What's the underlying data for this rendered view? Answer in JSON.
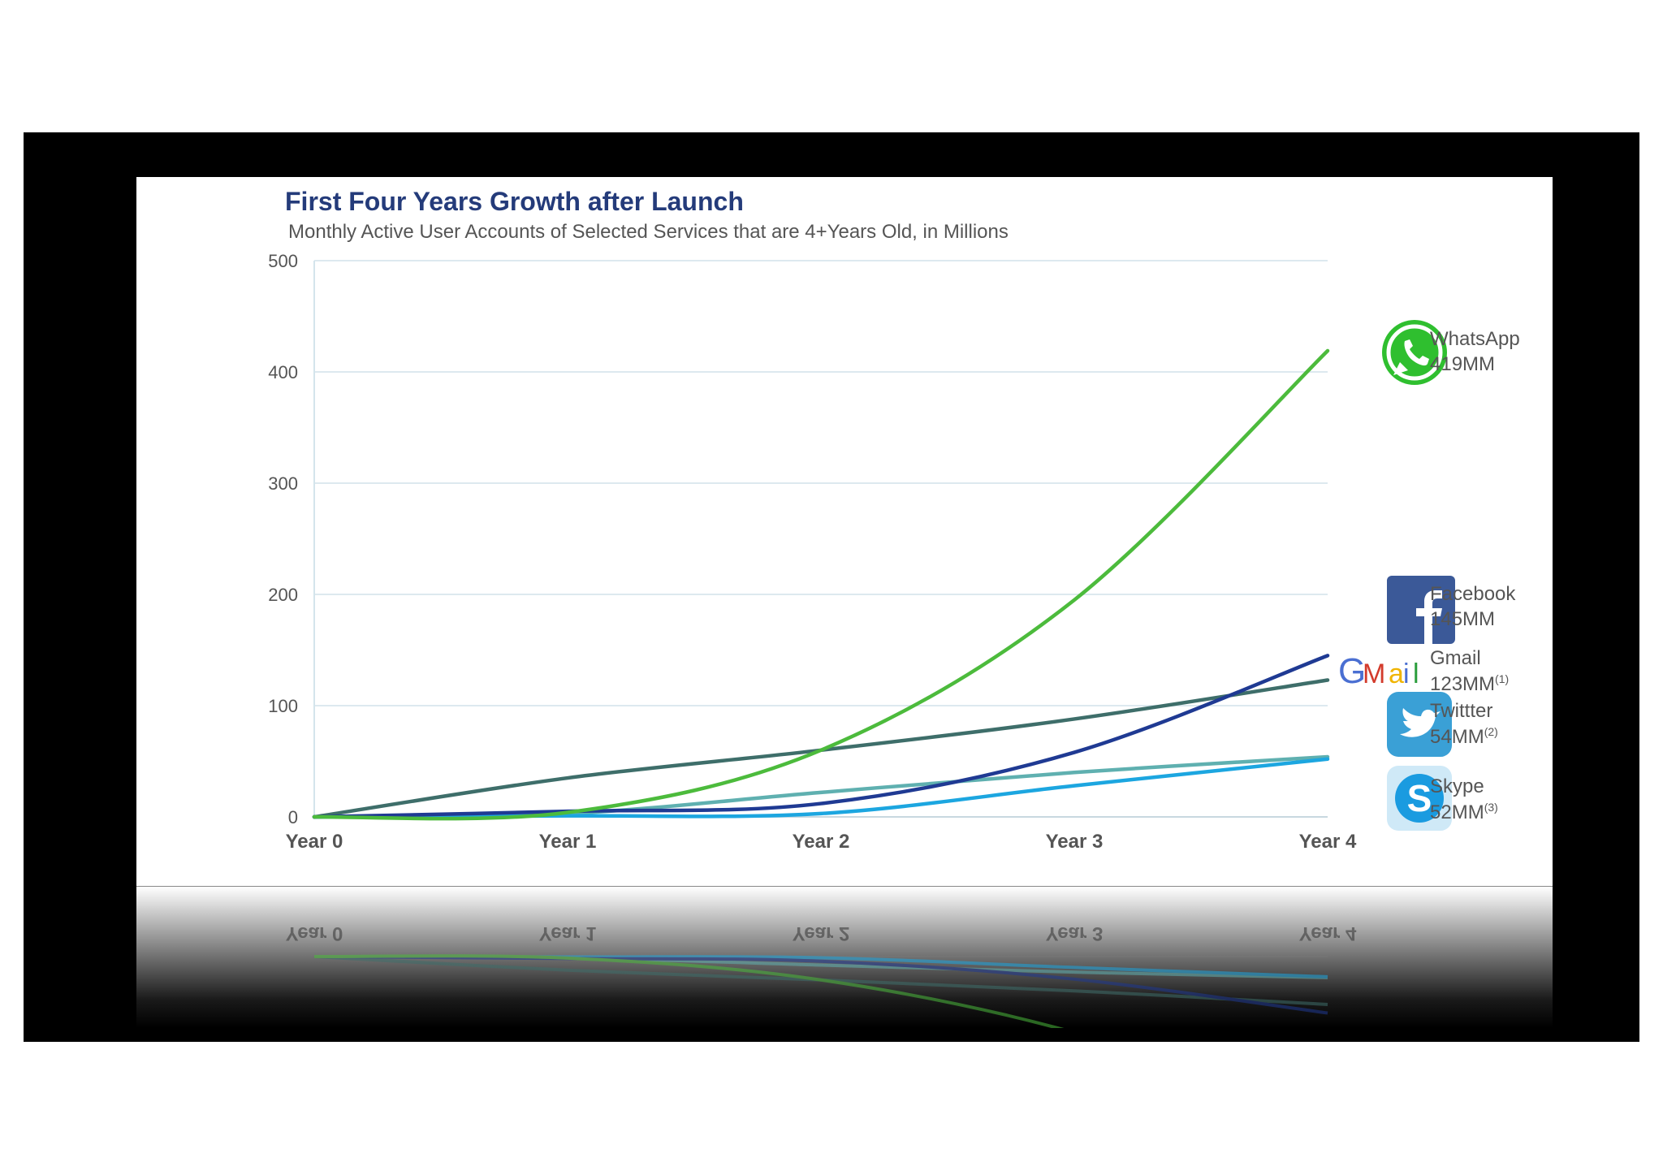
{
  "chart_data": {
    "type": "line",
    "title": "First Four Years Growth after Launch",
    "subtitle": "Monthly Active User Accounts of Selected Services that are 4+Years Old, in Millions",
    "categories": [
      "Year 0",
      "Year 1",
      "Year 2",
      "Year 3",
      "Year 4"
    ],
    "x": [
      0,
      1,
      2,
      3,
      4
    ],
    "ylim": [
      0,
      500
    ],
    "yticks": [
      0,
      100,
      200,
      300,
      400,
      500
    ],
    "grid": true,
    "series": [
      {
        "name": "WhatsApp",
        "label": "419MM",
        "color": "#4cbb3c",
        "icon": "whatsapp-icon",
        "values": [
          0,
          4,
          60,
          195,
          419
        ]
      },
      {
        "name": "Facebook",
        "label": "145MM",
        "color": "#1f3a93",
        "icon": "facebook-icon",
        "values": [
          0,
          5,
          12,
          58,
          145
        ]
      },
      {
        "name": "Gmail",
        "label": "123MM",
        "footnote": "(1)",
        "color": "#3e6e6a",
        "icon": "gmail-icon",
        "values": [
          0,
          35,
          60,
          88,
          123
        ]
      },
      {
        "name": "Twittter",
        "label": "54MM",
        "footnote": "(2)",
        "color": "#5fb0b0",
        "icon": "twitter-icon",
        "values": [
          0,
          3,
          22,
          40,
          54
        ]
      },
      {
        "name": "Skype",
        "label": "52MM",
        "footnote": "(3)",
        "color": "#1ca6e0",
        "icon": "skype-icon",
        "values": [
          0,
          1,
          3,
          28,
          52
        ]
      }
    ]
  }
}
